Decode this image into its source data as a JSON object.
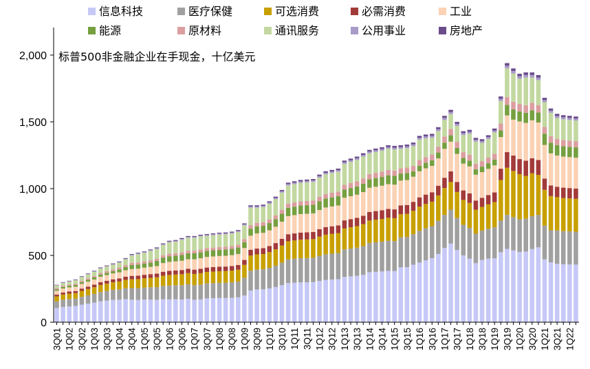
{
  "chart_data": {
    "type": "bar",
    "stacked": true,
    "title": "标普500非金融企业在手现金，十亿美元",
    "xlabel": "",
    "ylabel": "",
    "ylim": [
      0,
      2000
    ],
    "yticks": [
      0,
      500,
      1000,
      1500,
      2000
    ],
    "ytick_labels": [
      "0",
      "500",
      "1,000",
      "1,500",
      "2,000"
    ],
    "grid": false,
    "legend_position": "top",
    "categories": [
      "3Q01",
      "4Q01",
      "1Q02",
      "2Q02",
      "3Q02",
      "4Q02",
      "1Q03",
      "2Q03",
      "3Q03",
      "4Q03",
      "1Q04",
      "2Q04",
      "3Q04",
      "4Q04",
      "1Q05",
      "2Q05",
      "3Q05",
      "4Q05",
      "1Q06",
      "2Q06",
      "3Q06",
      "4Q06",
      "1Q07",
      "2Q07",
      "3Q07",
      "4Q07",
      "1Q08",
      "2Q08",
      "3Q08",
      "4Q08",
      "1Q09",
      "2Q09",
      "3Q09",
      "4Q09",
      "1Q10",
      "2Q10",
      "3Q10",
      "4Q10",
      "1Q11",
      "2Q11",
      "3Q11",
      "4Q11",
      "1Q12",
      "2Q12",
      "3Q12",
      "4Q12",
      "1Q13",
      "2Q13",
      "3Q13",
      "4Q13",
      "1Q14",
      "2Q14",
      "3Q14",
      "4Q14",
      "1Q15",
      "2Q15",
      "3Q15",
      "4Q15",
      "1Q16",
      "2Q16",
      "3Q16",
      "4Q16",
      "1Q17",
      "2Q17",
      "3Q17",
      "4Q17",
      "1Q18",
      "2Q18",
      "3Q18",
      "4Q18",
      "1Q19",
      "2Q19",
      "3Q19",
      "4Q19",
      "1Q20",
      "2Q20",
      "3Q20",
      "4Q20",
      "1Q21",
      "2Q21",
      "3Q21",
      "4Q21",
      "1Q22",
      "2Q22"
    ],
    "x_label_every": 2,
    "series_totals": [
      280,
      300,
      310,
      320,
      345,
      365,
      385,
      410,
      425,
      440,
      455,
      480,
      510,
      520,
      530,
      545,
      560,
      590,
      610,
      615,
      630,
      645,
      645,
      655,
      660,
      665,
      670,
      672,
      678,
      690,
      740,
      875,
      875,
      880,
      905,
      940,
      990,
      1045,
      1055,
      1065,
      1068,
      1072,
      1105,
      1130,
      1140,
      1150,
      1210,
      1225,
      1240,
      1265,
      1290,
      1300,
      1310,
      1325,
      1320,
      1325,
      1330,
      1345,
      1395,
      1405,
      1410,
      1460,
      1545,
      1590,
      1500,
      1430,
      1440,
      1380,
      1370,
      1400,
      1450,
      1690,
      1940,
      1900,
      1860,
      1870,
      1870,
      1850,
      1680,
      1600,
      1560,
      1550,
      1545,
      1540
    ],
    "series": [
      {
        "name": "信息科技",
        "color": "#c6c8f7",
        "share": [
          0.38,
          0.38,
          0.38,
          0.38,
          0.38,
          0.38,
          0.38,
          0.38,
          0.38,
          0.38,
          0.37,
          0.36,
          0.33,
          0.32,
          0.32,
          0.31,
          0.3,
          0.29,
          0.28,
          0.28,
          0.27,
          0.27,
          0.26,
          0.26,
          0.27,
          0.27,
          0.27,
          0.27,
          0.27,
          0.27,
          0.27,
          0.27,
          0.28,
          0.28,
          0.28,
          0.28,
          0.28,
          0.28,
          0.28,
          0.28,
          0.28,
          0.28,
          0.28,
          0.28,
          0.28,
          0.28,
          0.28,
          0.28,
          0.28,
          0.28,
          0.29,
          0.29,
          0.29,
          0.29,
          0.29,
          0.31,
          0.31,
          0.32,
          0.32,
          0.33,
          0.34,
          0.35,
          0.36,
          0.37,
          0.36,
          0.35,
          0.33,
          0.32,
          0.34,
          0.34,
          0.33,
          0.31,
          0.28,
          0.28,
          0.28,
          0.28,
          0.29,
          0.3,
          0.28,
          0.28,
          0.28,
          0.28,
          0.28,
          0.28
        ]
      },
      {
        "name": "医疗保健",
        "color": "#a0a0a0",
        "share": [
          0.18,
          0.18,
          0.18,
          0.17,
          0.17,
          0.17,
          0.17,
          0.17,
          0.17,
          0.17,
          0.17,
          0.17,
          0.17,
          0.17,
          0.17,
          0.17,
          0.17,
          0.17,
          0.17,
          0.17,
          0.17,
          0.17,
          0.17,
          0.17,
          0.17,
          0.17,
          0.17,
          0.17,
          0.17,
          0.17,
          0.18,
          0.17,
          0.17,
          0.17,
          0.17,
          0.17,
          0.17,
          0.17,
          0.17,
          0.17,
          0.17,
          0.17,
          0.17,
          0.17,
          0.17,
          0.17,
          0.17,
          0.17,
          0.17,
          0.17,
          0.17,
          0.17,
          0.17,
          0.17,
          0.17,
          0.17,
          0.17,
          0.17,
          0.17,
          0.17,
          0.17,
          0.17,
          0.16,
          0.16,
          0.16,
          0.16,
          0.16,
          0.16,
          0.16,
          0.16,
          0.16,
          0.14,
          0.13,
          0.13,
          0.13,
          0.13,
          0.13,
          0.13,
          0.15,
          0.15,
          0.16,
          0.16,
          0.16,
          0.16
        ]
      },
      {
        "name": "可选消费",
        "color": "#c8a000",
        "share": [
          0.13,
          0.13,
          0.13,
          0.13,
          0.13,
          0.13,
          0.13,
          0.13,
          0.13,
          0.13,
          0.13,
          0.13,
          0.13,
          0.13,
          0.13,
          0.13,
          0.13,
          0.13,
          0.13,
          0.13,
          0.13,
          0.13,
          0.13,
          0.13,
          0.13,
          0.13,
          0.13,
          0.13,
          0.13,
          0.13,
          0.13,
          0.13,
          0.13,
          0.13,
          0.13,
          0.13,
          0.13,
          0.13,
          0.13,
          0.13,
          0.13,
          0.13,
          0.13,
          0.13,
          0.13,
          0.13,
          0.13,
          0.13,
          0.13,
          0.13,
          0.13,
          0.13,
          0.13,
          0.13,
          0.13,
          0.13,
          0.13,
          0.13,
          0.13,
          0.13,
          0.13,
          0.13,
          0.13,
          0.13,
          0.13,
          0.13,
          0.13,
          0.13,
          0.13,
          0.13,
          0.13,
          0.18,
          0.18,
          0.18,
          0.18,
          0.17,
          0.17,
          0.16,
          0.16,
          0.16,
          0.16,
          0.16,
          0.16,
          0.16
        ]
      },
      {
        "name": "必需消费",
        "color": "#a33a3a",
        "share": [
          0.05,
          0.05,
          0.05,
          0.05,
          0.05,
          0.05,
          0.05,
          0.05,
          0.05,
          0.05,
          0.05,
          0.05,
          0.05,
          0.05,
          0.05,
          0.05,
          0.05,
          0.05,
          0.05,
          0.05,
          0.05,
          0.05,
          0.05,
          0.05,
          0.05,
          0.05,
          0.05,
          0.05,
          0.05,
          0.05,
          0.05,
          0.05,
          0.05,
          0.05,
          0.05,
          0.05,
          0.05,
          0.05,
          0.05,
          0.05,
          0.05,
          0.05,
          0.05,
          0.05,
          0.05,
          0.05,
          0.05,
          0.05,
          0.05,
          0.05,
          0.05,
          0.05,
          0.05,
          0.05,
          0.05,
          0.05,
          0.05,
          0.05,
          0.05,
          0.05,
          0.05,
          0.05,
          0.05,
          0.05,
          0.05,
          0.05,
          0.05,
          0.05,
          0.05,
          0.05,
          0.05,
          0.05,
          0.06,
          0.06,
          0.06,
          0.06,
          0.06,
          0.06,
          0.05,
          0.05,
          0.05,
          0.05,
          0.05,
          0.05
        ]
      },
      {
        "name": "工业",
        "color": "#fbd2b4",
        "share": [
          0.1,
          0.1,
          0.1,
          0.1,
          0.1,
          0.1,
          0.1,
          0.1,
          0.1,
          0.1,
          0.1,
          0.1,
          0.1,
          0.1,
          0.1,
          0.1,
          0.1,
          0.11,
          0.11,
          0.11,
          0.11,
          0.11,
          0.12,
          0.12,
          0.12,
          0.12,
          0.12,
          0.12,
          0.12,
          0.12,
          0.12,
          0.12,
          0.13,
          0.13,
          0.13,
          0.13,
          0.13,
          0.13,
          0.13,
          0.13,
          0.13,
          0.13,
          0.13,
          0.13,
          0.13,
          0.13,
          0.14,
          0.14,
          0.14,
          0.14,
          0.14,
          0.14,
          0.14,
          0.14,
          0.14,
          0.14,
          0.14,
          0.14,
          0.14,
          0.14,
          0.14,
          0.14,
          0.14,
          0.14,
          0.14,
          0.14,
          0.14,
          0.14,
          0.14,
          0.14,
          0.14,
          0.14,
          0.14,
          0.14,
          0.15,
          0.15,
          0.15,
          0.15,
          0.15,
          0.15,
          0.15,
          0.15,
          0.15,
          0.15
        ]
      },
      {
        "name": "能源",
        "color": "#76a040",
        "share": [
          0.04,
          0.04,
          0.04,
          0.04,
          0.04,
          0.04,
          0.04,
          0.04,
          0.04,
          0.04,
          0.05,
          0.05,
          0.06,
          0.06,
          0.06,
          0.06,
          0.07,
          0.07,
          0.07,
          0.07,
          0.07,
          0.07,
          0.07,
          0.07,
          0.07,
          0.07,
          0.07,
          0.07,
          0.07,
          0.07,
          0.06,
          0.06,
          0.06,
          0.06,
          0.06,
          0.06,
          0.06,
          0.06,
          0.06,
          0.06,
          0.06,
          0.06,
          0.06,
          0.06,
          0.06,
          0.06,
          0.05,
          0.05,
          0.05,
          0.05,
          0.05,
          0.05,
          0.05,
          0.05,
          0.05,
          0.04,
          0.04,
          0.03,
          0.03,
          0.03,
          0.03,
          0.03,
          0.03,
          0.03,
          0.03,
          0.03,
          0.03,
          0.03,
          0.03,
          0.03,
          0.03,
          0.03,
          0.04,
          0.04,
          0.04,
          0.04,
          0.04,
          0.04,
          0.05,
          0.05,
          0.05,
          0.05,
          0.05,
          0.05
        ]
      },
      {
        "name": "原材料",
        "color": "#dc9ea0",
        "share": [
          0.03,
          0.03,
          0.03,
          0.03,
          0.03,
          0.03,
          0.03,
          0.03,
          0.03,
          0.03,
          0.03,
          0.03,
          0.03,
          0.03,
          0.03,
          0.03,
          0.03,
          0.03,
          0.03,
          0.03,
          0.03,
          0.03,
          0.03,
          0.03,
          0.03,
          0.03,
          0.03,
          0.03,
          0.03,
          0.03,
          0.03,
          0.03,
          0.03,
          0.03,
          0.03,
          0.03,
          0.03,
          0.03,
          0.03,
          0.03,
          0.03,
          0.03,
          0.03,
          0.03,
          0.03,
          0.03,
          0.03,
          0.03,
          0.03,
          0.03,
          0.03,
          0.03,
          0.03,
          0.03,
          0.03,
          0.03,
          0.03,
          0.03,
          0.03,
          0.03,
          0.03,
          0.03,
          0.03,
          0.03,
          0.03,
          0.03,
          0.03,
          0.03,
          0.03,
          0.03,
          0.03,
          0.03,
          0.03,
          0.03,
          0.03,
          0.03,
          0.03,
          0.03,
          0.03,
          0.03,
          0.03,
          0.03,
          0.03,
          0.03
        ]
      },
      {
        "name": "通讯服务",
        "color": "#c2d8a0",
        "share": [
          0.07,
          0.07,
          0.07,
          0.08,
          0.08,
          0.08,
          0.08,
          0.08,
          0.08,
          0.08,
          0.08,
          0.09,
          0.11,
          0.12,
          0.12,
          0.13,
          0.13,
          0.13,
          0.14,
          0.14,
          0.15,
          0.15,
          0.15,
          0.15,
          0.14,
          0.14,
          0.14,
          0.14,
          0.14,
          0.14,
          0.14,
          0.15,
          0.13,
          0.13,
          0.13,
          0.13,
          0.13,
          0.13,
          0.13,
          0.13,
          0.13,
          0.13,
          0.13,
          0.13,
          0.13,
          0.13,
          0.13,
          0.13,
          0.13,
          0.13,
          0.12,
          0.12,
          0.12,
          0.12,
          0.12,
          0.11,
          0.11,
          0.11,
          0.11,
          0.1,
          0.09,
          0.08,
          0.08,
          0.07,
          0.08,
          0.09,
          0.11,
          0.12,
          0.1,
          0.1,
          0.11,
          0.1,
          0.11,
          0.11,
          0.1,
          0.11,
          0.1,
          0.1,
          0.11,
          0.11,
          0.1,
          0.1,
          0.1,
          0.1
        ]
      },
      {
        "name": "公用事业",
        "color": "#a89bc8",
        "share": [
          0.01,
          0.01,
          0.01,
          0.01,
          0.01,
          0.01,
          0.01,
          0.01,
          0.01,
          0.01,
          0.01,
          0.01,
          0.01,
          0.01,
          0.01,
          0.01,
          0.01,
          0.01,
          0.01,
          0.01,
          0.01,
          0.01,
          0.01,
          0.01,
          0.01,
          0.01,
          0.01,
          0.01,
          0.01,
          0.01,
          0.01,
          0.01,
          0.01,
          0.01,
          0.01,
          0.01,
          0.01,
          0.01,
          0.01,
          0.01,
          0.01,
          0.01,
          0.01,
          0.01,
          0.01,
          0.01,
          0.01,
          0.01,
          0.01,
          0.01,
          0.01,
          0.01,
          0.01,
          0.01,
          0.01,
          0.01,
          0.01,
          0.01,
          0.01,
          0.01,
          0.01,
          0.01,
          0.01,
          0.01,
          0.01,
          0.01,
          0.01,
          0.01,
          0.01,
          0.01,
          0.01,
          0.01,
          0.01,
          0.01,
          0.01,
          0.01,
          0.01,
          0.01,
          0.01,
          0.01,
          0.01,
          0.01,
          0.01,
          0.01
        ]
      },
      {
        "name": "房地产",
        "color": "#6a4c8a",
        "share": [
          0.01,
          0.01,
          0.01,
          0.01,
          0.01,
          0.01,
          0.01,
          0.01,
          0.01,
          0.01,
          0.01,
          0.01,
          0.01,
          0.01,
          0.01,
          0.01,
          0.01,
          0.01,
          0.01,
          0.01,
          0.01,
          0.01,
          0.01,
          0.01,
          0.01,
          0.01,
          0.01,
          0.01,
          0.01,
          0.01,
          0.01,
          0.01,
          0.01,
          0.01,
          0.01,
          0.01,
          0.01,
          0.01,
          0.01,
          0.01,
          0.01,
          0.01,
          0.01,
          0.01,
          0.01,
          0.01,
          0.01,
          0.01,
          0.01,
          0.01,
          0.01,
          0.01,
          0.01,
          0.01,
          0.01,
          0.01,
          0.01,
          0.01,
          0.01,
          0.01,
          0.01,
          0.01,
          0.01,
          0.01,
          0.01,
          0.01,
          0.01,
          0.01,
          0.01,
          0.01,
          0.01,
          0.01,
          0.01,
          0.01,
          0.01,
          0.01,
          0.01,
          0.01,
          0.01,
          0.01,
          0.01,
          0.01,
          0.01,
          0.01
        ]
      }
    ]
  }
}
